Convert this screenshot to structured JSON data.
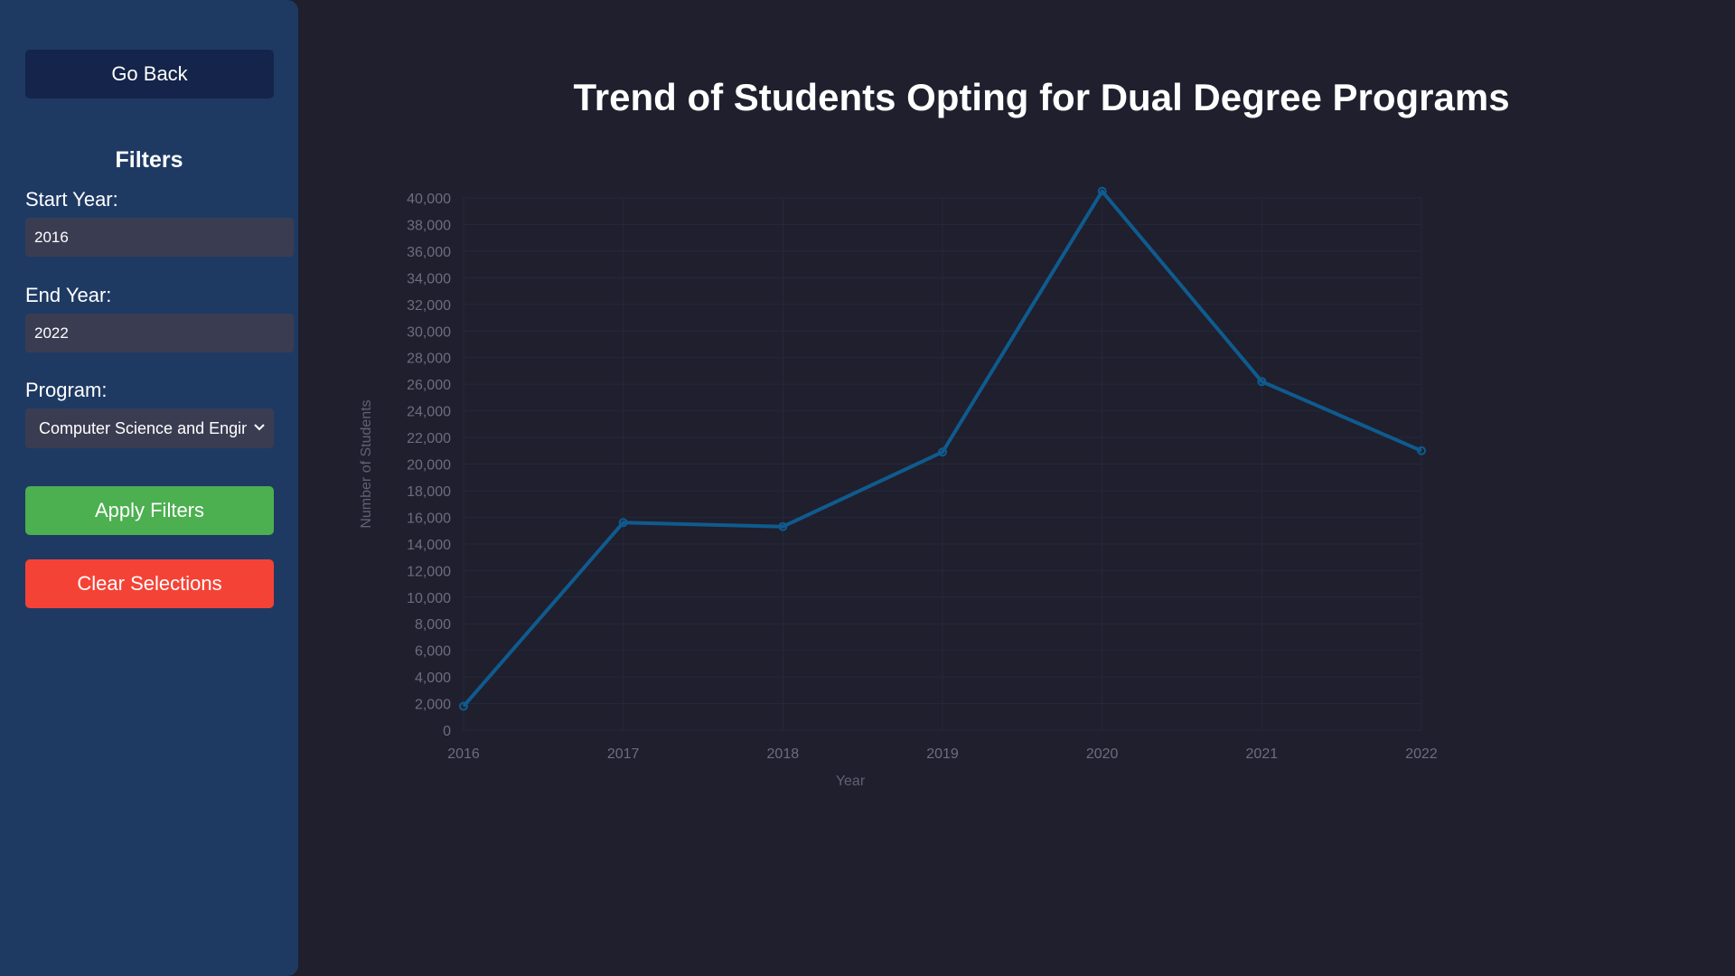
{
  "sidebar": {
    "back_label": "Go Back",
    "filters_title": "Filters",
    "start_year_label": "Start Year:",
    "start_year_value": "2016",
    "end_year_label": "End Year:",
    "end_year_value": "2022",
    "program_label": "Program:",
    "program_value": "Computer Science and Engineering",
    "apply_label": "Apply Filters",
    "clear_label": "Clear Selections"
  },
  "colors": {
    "sidebar_bg": "#1e3a63",
    "page_bg": "#1f1f2e",
    "apply": "#4caf50",
    "clear": "#f44336",
    "back": "#14244a",
    "line": "#0f5b8e"
  },
  "chart_data": {
    "type": "line",
    "title": "Trend of Students Opting for Dual Degree Programs",
    "xlabel": "Year",
    "ylabel": "Number of Students",
    "x": [
      "2016",
      "2017",
      "2018",
      "2019",
      "2020",
      "2021",
      "2022"
    ],
    "series": [
      {
        "values": [
          1800,
          15600,
          15300,
          20900,
          40500,
          26200,
          21000
        ]
      }
    ],
    "ylim": [
      0,
      40000
    ],
    "ytick_step": 2000,
    "grid": true,
    "legend": "none"
  }
}
